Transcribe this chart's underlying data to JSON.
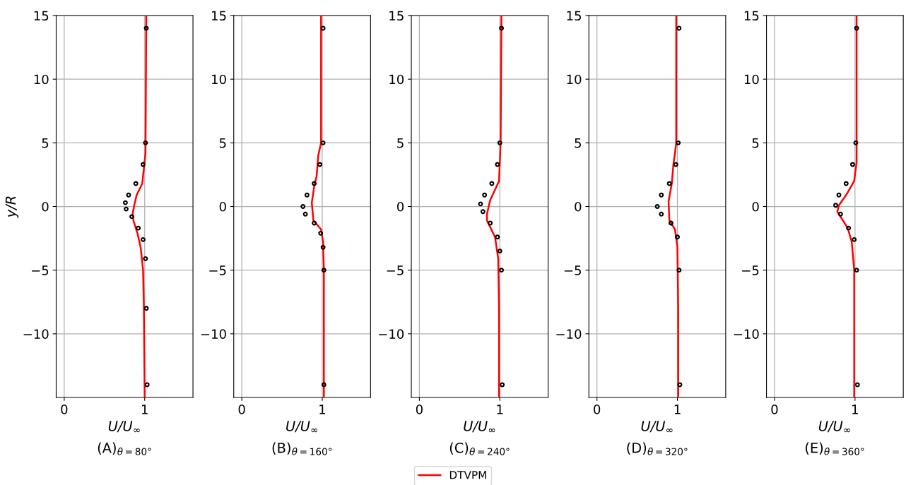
{
  "chart_data": [
    {
      "type": "line",
      "title": "(A)$_{θ=80°}$",
      "xlabel": "U/U$_{∞}$",
      "ylabel": "y/R",
      "xlim": [
        -0.1,
        1.6
      ],
      "ylim": [
        -15,
        15
      ],
      "xticks": [
        0,
        1
      ],
      "yticks": [
        -10,
        -5,
        0,
        5,
        10,
        15
      ],
      "grid": true,
      "series": [
        {
          "color": "#ff0000",
          "x": [
            1.0,
            0.99,
            0.98,
            0.95,
            0.91,
            0.86,
            0.85,
            0.87,
            0.9,
            0.97,
            1.01,
            1.02
          ],
          "values": [
            -15,
            -8,
            -5.0,
            -3.2,
            -2.1,
            -1.1,
            -0.6,
            0.1,
            0.9,
            1.8,
            4.2,
            15
          ]
        },
        {
          "type": "scatter",
          "color": "#000000",
          "marker": "circle",
          "x": [
            1.03,
            1.02,
            1.01,
            0.98,
            0.92,
            0.84,
            0.77,
            0.76,
            0.8,
            0.89,
            0.98,
            1.01,
            1.02
          ],
          "values": [
            -14,
            -8,
            -4.1,
            -2.6,
            -1.7,
            -0.8,
            -0.2,
            0.3,
            0.9,
            1.8,
            3.3,
            5,
            14
          ]
        }
      ]
    },
    {
      "type": "line",
      "title": "(B)$_{θ=160°}$",
      "xlabel": "U/U$_{∞}$",
      "xlim": [
        -0.1,
        1.6
      ],
      "ylim": [
        -15,
        15
      ],
      "xticks": [
        0,
        1
      ],
      "yticks": [
        -10,
        -5,
        0,
        5,
        10,
        15
      ],
      "grid": true,
      "series": [
        {
          "color": "#ff0000",
          "x": [
            1.02,
            1.02,
            1.01,
            0.985,
            0.89,
            0.87,
            0.9,
            0.93,
            0.95,
            0.985,
            0.985
          ],
          "values": [
            -15,
            -5,
            -2.8,
            -1.8,
            -1.1,
            0.3,
            1.6,
            2.4,
            4.0,
            5,
            15
          ]
        },
        {
          "type": "scatter",
          "color": "#000000",
          "marker": "circle",
          "x": [
            1.02,
            1.02,
            1.01,
            0.98,
            0.9,
            0.79,
            0.76,
            0.81,
            0.9,
            0.97,
            1.01,
            1.01
          ],
          "values": [
            -14,
            -5,
            -3.2,
            -2.1,
            -1.3,
            -0.6,
            0,
            0.9,
            1.8,
            3.3,
            5,
            14
          ]
        }
      ]
    },
    {
      "type": "line",
      "title": "(C)$_{θ=240°}$",
      "xlabel": "U/U$_{∞}$",
      "xlim": [
        -0.1,
        1.6
      ],
      "ylim": [
        -15,
        15
      ],
      "xticks": [
        0,
        1
      ],
      "yticks": [
        -10,
        -5,
        0,
        5,
        10,
        15
      ],
      "grid": true,
      "legend": "bottom",
      "series": [
        {
          "name": "DTVPM",
          "color": "#ff0000",
          "x": [
            0.99,
            0.99,
            0.98,
            0.94,
            0.84,
            0.84,
            0.88,
            0.99,
            1.01,
            1.02
          ],
          "values": [
            -15,
            -8,
            -4.1,
            -2.4,
            -1.1,
            -0.6,
            0.5,
            2.0,
            5,
            15
          ]
        },
        {
          "type": "scatter",
          "color": "#000000",
          "marker": "circle",
          "x": [
            1.03,
            1.02,
            1.0,
            0.97,
            0.88,
            0.79,
            0.76,
            0.81,
            0.9,
            0.97,
            1.0,
            1.02
          ],
          "values": [
            -14,
            -5,
            -3.5,
            -2.4,
            -1.3,
            -0.4,
            0.2,
            0.9,
            1.8,
            3.3,
            5,
            14
          ]
        }
      ]
    },
    {
      "type": "line",
      "title": "(D)$_{θ=320°}$",
      "xlabel": "U/U$_{∞}$",
      "xlim": [
        -0.1,
        1.6
      ],
      "ylim": [
        -15,
        15
      ],
      "xticks": [
        0,
        1
      ],
      "yticks": [
        -10,
        -5,
        0,
        5,
        10,
        15
      ],
      "grid": true,
      "series": [
        {
          "color": "#ff0000",
          "x": [
            1.01,
            1.01,
            1.0,
            0.97,
            0.9,
            0.89,
            0.93,
            0.95,
            0.97,
            0.985,
            0.985
          ],
          "values": [
            -15,
            -8,
            -3.2,
            -1.8,
            -1.1,
            0.4,
            1.8,
            3.3,
            4.2,
            5,
            15
          ]
        },
        {
          "type": "scatter",
          "color": "#000000",
          "marker": "circle",
          "x": [
            1.03,
            1.02,
            1.0,
            0.92,
            0.8,
            0.75,
            0.8,
            0.9,
            0.98,
            1.01,
            1.02
          ],
          "values": [
            -14,
            -5,
            -2.4,
            -1.3,
            -0.6,
            0,
            0.9,
            1.8,
            3.3,
            5,
            14
          ]
        }
      ]
    },
    {
      "type": "line",
      "title": "(E)$_{θ=360°}$",
      "xlabel": "U/U$_{∞}$",
      "xlim": [
        -0.1,
        1.6
      ],
      "ylim": [
        -15,
        15
      ],
      "xticks": [
        0,
        1
      ],
      "yticks": [
        -10,
        -5,
        0,
        5,
        10,
        15
      ],
      "grid": true,
      "series": [
        {
          "color": "#ff0000",
          "x": [
            0.99,
            0.99,
            0.96,
            0.91,
            0.78,
            0.8,
            0.89,
            0.99,
            1.02,
            1.02,
            1.02
          ],
          "values": [
            -15,
            -5,
            -2.8,
            -1.7,
            -0.4,
            0.1,
            0.9,
            2.0,
            3.5,
            5,
            15
          ]
        },
        {
          "type": "scatter",
          "color": "#000000",
          "marker": "circle",
          "x": [
            1.03,
            1.02,
            0.99,
            0.92,
            0.82,
            0.76,
            0.8,
            0.89,
            0.97,
            1.01,
            1.02
          ],
          "values": [
            -14,
            -5,
            -2.6,
            -1.7,
            -0.6,
            0.1,
            0.9,
            1.8,
            3.3,
            5,
            14
          ]
        }
      ]
    }
  ]
}
